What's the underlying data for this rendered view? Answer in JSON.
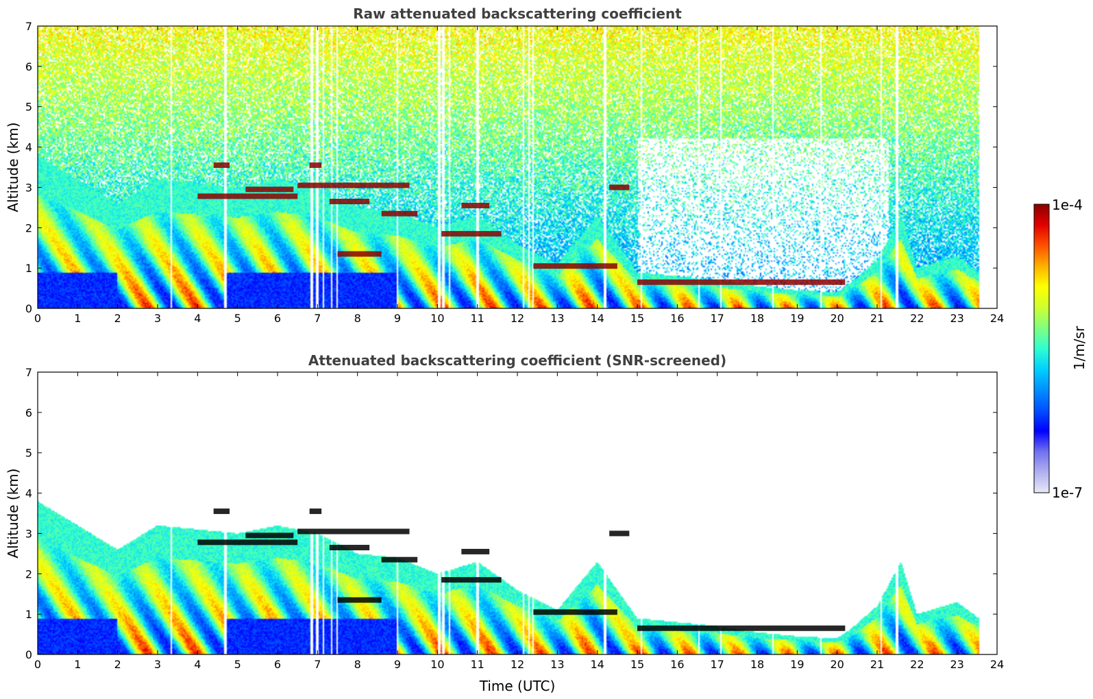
{
  "chart_data": [
    {
      "type": "heatmap",
      "title": "Raw attenuated backscattering coefficient",
      "xlabel": "",
      "ylabel": "Altitude (km)",
      "xlim": [
        0,
        24
      ],
      "ylim": [
        0,
        7
      ],
      "xticks": [
        "0",
        "1",
        "2",
        "3",
        "4",
        "5",
        "6",
        "7",
        "8",
        "9",
        "10",
        "11",
        "12",
        "13",
        "14",
        "15",
        "16",
        "17",
        "18",
        "19",
        "20",
        "21",
        "22",
        "23",
        "24"
      ],
      "yticks": [
        "0",
        "1",
        "2",
        "3",
        "4",
        "5",
        "6",
        "7"
      ],
      "noise_to_top": true,
      "x_end_hour": 23.55,
      "aerosol_top_km": {
        "hours": [
          0,
          1,
          2,
          3,
          4,
          5,
          6,
          7,
          8,
          9,
          10,
          11,
          12,
          13,
          14,
          15,
          16,
          17,
          18,
          19,
          20,
          20.3,
          21,
          21.6,
          22,
          23,
          23.55
        ],
        "km": [
          3.8,
          3.2,
          2.6,
          3.2,
          3.1,
          3.0,
          3.2,
          3.0,
          2.5,
          2.4,
          2.0,
          2.3,
          1.6,
          1.1,
          2.3,
          0.9,
          0.8,
          0.7,
          0.55,
          0.45,
          0.4,
          0.6,
          1.2,
          2.3,
          1.0,
          1.3,
          0.9
        ]
      },
      "cloud_layers": [
        {
          "start": 4.0,
          "end": 6.5,
          "km": 2.78,
          "intensity": "high"
        },
        {
          "start": 5.2,
          "end": 6.4,
          "km": 2.95,
          "intensity": "high"
        },
        {
          "start": 4.4,
          "end": 4.8,
          "km": 3.55,
          "intensity": "high"
        },
        {
          "start": 6.5,
          "end": 9.3,
          "km": 3.05,
          "intensity": "high"
        },
        {
          "start": 6.8,
          "end": 7.1,
          "km": 3.55,
          "intensity": "high"
        },
        {
          "start": 7.3,
          "end": 8.3,
          "km": 2.65,
          "intensity": "high"
        },
        {
          "start": 8.6,
          "end": 9.5,
          "km": 2.35,
          "intensity": "high"
        },
        {
          "start": 10.1,
          "end": 11.6,
          "km": 1.85,
          "intensity": "high"
        },
        {
          "start": 10.6,
          "end": 11.3,
          "km": 2.55,
          "intensity": "high"
        },
        {
          "start": 7.5,
          "end": 8.6,
          "km": 1.35,
          "intensity": "high"
        },
        {
          "start": 12.4,
          "end": 14.5,
          "km": 1.05,
          "intensity": "high"
        },
        {
          "start": 14.3,
          "end": 14.8,
          "km": 3.0,
          "intensity": "high"
        },
        {
          "start": 15.0,
          "end": 20.2,
          "km": 0.65,
          "intensity": "high"
        }
      ],
      "dropout_columns_hour": [
        3.35,
        4.7,
        6.85,
        7.0,
        7.15,
        7.35,
        7.5,
        9.0,
        10.05,
        10.15,
        10.3,
        11.0,
        12.15,
        12.3,
        12.4,
        14.2,
        15.1,
        16.55,
        17.1,
        18.4,
        19.6,
        21.1,
        21.5
      ]
    },
    {
      "type": "heatmap",
      "title": "Attenuated backscattering coefficient (SNR-screened)",
      "xlabel": "Time (UTC)",
      "ylabel": "Altitude (km)",
      "xlim": [
        0,
        24
      ],
      "ylim": [
        0,
        7
      ],
      "xticks": [
        "0",
        "1",
        "2",
        "3",
        "4",
        "5",
        "6",
        "7",
        "8",
        "9",
        "10",
        "11",
        "12",
        "13",
        "14",
        "15",
        "16",
        "17",
        "18",
        "19",
        "20",
        "21",
        "22",
        "23",
        "24"
      ],
      "yticks": [
        "0",
        "1",
        "2",
        "3",
        "4",
        "5",
        "6",
        "7"
      ],
      "noise_to_top": false,
      "saturated_color": "#000000"
    }
  ],
  "colorbar": {
    "label": "1/m/sr",
    "max_label": "1e-4",
    "min_label": "1e-7",
    "stops": [
      "#e8e8f8",
      "#b0b0f0",
      "#7070f0",
      "#0000ff",
      "#0050ff",
      "#0090ff",
      "#00d0ff",
      "#30ffd0",
      "#80ff80",
      "#d0ff30",
      "#ffff00",
      "#ffb000",
      "#ff5000",
      "#e00000",
      "#8b0000"
    ]
  },
  "colors": {
    "axis": "#000000",
    "title": "#404040",
    "background": "#ffffff"
  }
}
